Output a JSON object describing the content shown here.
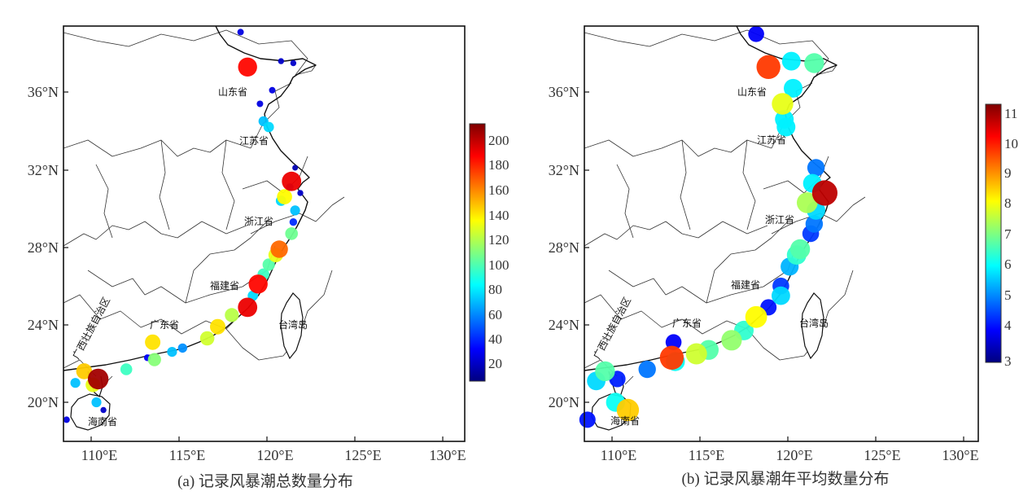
{
  "panels": [
    {
      "id": "a",
      "caption": "(a) 记录风暴潮总数量分布",
      "x_ticks": [
        "110°E",
        "115°E",
        "120°E",
        "125°E",
        "130°E"
      ],
      "y_ticks": [
        "36°N",
        "32°N",
        "28°N",
        "24°N",
        "20°N"
      ],
      "colorbar_ticks": [
        "200",
        "180",
        "160",
        "140",
        "120",
        "100",
        "80",
        "60",
        "40",
        "20"
      ],
      "colorbar_range": [
        5,
        212
      ],
      "provinces": [
        "山东省",
        "江苏省",
        "浙江省",
        "福建省",
        "广东省",
        "台湾岛",
        "海南省",
        "广西壮族自治区"
      ],
      "stations": [
        {
          "lon": 118.5,
          "lat": 39.1,
          "v": 25
        },
        {
          "lon": 118.9,
          "lat": 37.3,
          "v": 185
        },
        {
          "lon": 120.8,
          "lat": 37.6,
          "v": 20
        },
        {
          "lon": 121.5,
          "lat": 37.5,
          "v": 20
        },
        {
          "lon": 120.3,
          "lat": 36.1,
          "v": 25
        },
        {
          "lon": 119.6,
          "lat": 35.4,
          "v": 25
        },
        {
          "lon": 119.8,
          "lat": 34.5,
          "v": 70
        },
        {
          "lon": 120.1,
          "lat": 34.2,
          "v": 75
        },
        {
          "lon": 121.6,
          "lat": 32.1,
          "v": 15
        },
        {
          "lon": 121.4,
          "lat": 31.4,
          "v": 190
        },
        {
          "lon": 121.3,
          "lat": 31.1,
          "v": 40
        },
        {
          "lon": 121.9,
          "lat": 30.8,
          "v": 20
        },
        {
          "lon": 120.8,
          "lat": 30.4,
          "v": 75
        },
        {
          "lon": 121.0,
          "lat": 30.6,
          "v": 135
        },
        {
          "lon": 121.6,
          "lat": 29.9,
          "v": 70
        },
        {
          "lon": 121.5,
          "lat": 29.3,
          "v": 40
        },
        {
          "lon": 121.4,
          "lat": 28.7,
          "v": 105
        },
        {
          "lon": 120.7,
          "lat": 27.9,
          "v": 165
        },
        {
          "lon": 120.5,
          "lat": 27.6,
          "v": 130
        },
        {
          "lon": 120.1,
          "lat": 27.1,
          "v": 100
        },
        {
          "lon": 119.8,
          "lat": 26.6,
          "v": 95
        },
        {
          "lon": 119.5,
          "lat": 26.1,
          "v": 185
        },
        {
          "lon": 119.2,
          "lat": 25.5,
          "v": 75
        },
        {
          "lon": 118.9,
          "lat": 24.9,
          "v": 190
        },
        {
          "lon": 118.0,
          "lat": 24.5,
          "v": 120
        },
        {
          "lon": 117.2,
          "lat": 23.9,
          "v": 140
        },
        {
          "lon": 116.6,
          "lat": 23.3,
          "v": 125
        },
        {
          "lon": 115.2,
          "lat": 22.8,
          "v": 60
        },
        {
          "lon": 114.6,
          "lat": 22.6,
          "v": 70
        },
        {
          "lon": 113.5,
          "lat": 23.1,
          "v": 140
        },
        {
          "lon": 113.6,
          "lat": 22.2,
          "v": 110
        },
        {
          "lon": 113.2,
          "lat": 22.3,
          "v": 30
        },
        {
          "lon": 112.0,
          "lat": 21.7,
          "v": 95
        },
        {
          "lon": 110.4,
          "lat": 21.2,
          "v": 205
        },
        {
          "lon": 110.1,
          "lat": 20.9,
          "v": 130
        },
        {
          "lon": 109.6,
          "lat": 21.6,
          "v": 145
        },
        {
          "lon": 109.1,
          "lat": 21.0,
          "v": 70
        },
        {
          "lon": 110.3,
          "lat": 20.0,
          "v": 70
        },
        {
          "lon": 110.7,
          "lat": 19.6,
          "v": 20
        },
        {
          "lon": 108.6,
          "lat": 19.1,
          "v": 25
        }
      ]
    },
    {
      "id": "b",
      "caption": "(b) 记录风暴潮年平均数量分布",
      "x_ticks": [
        "110°E",
        "115°E",
        "120°E",
        "125°E",
        "130°E"
      ],
      "y_ticks": [
        "36°N",
        "32°N",
        "28°N",
        "24°N",
        "20°N"
      ],
      "colorbar_ticks": [
        "11",
        "10",
        "9",
        "8",
        "7",
        "6",
        "5",
        "4",
        "3"
      ],
      "colorbar_range": [
        3,
        11.3
      ],
      "provinces": [
        "山东省",
        "江苏省",
        "浙江省",
        "福建省",
        "广东省",
        "台湾岛",
        "海南省",
        "广西壮族自治区"
      ],
      "stations": [
        {
          "lon": 118.2,
          "lat": 39.0,
          "v": 4.0
        },
        {
          "lon": 118.9,
          "lat": 37.3,
          "v": 9.8
        },
        {
          "lon": 120.2,
          "lat": 37.6,
          "v": 6.0
        },
        {
          "lon": 121.5,
          "lat": 37.5,
          "v": 6.8
        },
        {
          "lon": 120.3,
          "lat": 36.2,
          "v": 6.0
        },
        {
          "lon": 119.7,
          "lat": 35.4,
          "v": 8.0
        },
        {
          "lon": 119.8,
          "lat": 34.6,
          "v": 6.0
        },
        {
          "lon": 119.9,
          "lat": 34.2,
          "v": 6.0
        },
        {
          "lon": 121.6,
          "lat": 32.1,
          "v": 5.0
        },
        {
          "lon": 121.4,
          "lat": 31.3,
          "v": 6.0
        },
        {
          "lon": 122.1,
          "lat": 30.8,
          "v": 10.8
        },
        {
          "lon": 121.1,
          "lat": 30.3,
          "v": 7.5
        },
        {
          "lon": 121.6,
          "lat": 29.9,
          "v": 5.8
        },
        {
          "lon": 121.5,
          "lat": 29.2,
          "v": 5.0
        },
        {
          "lon": 121.3,
          "lat": 28.7,
          "v": 4.5
        },
        {
          "lon": 120.7,
          "lat": 27.9,
          "v": 6.8
        },
        {
          "lon": 120.5,
          "lat": 27.6,
          "v": 6.5
        },
        {
          "lon": 120.1,
          "lat": 27.0,
          "v": 5.5
        },
        {
          "lon": 119.6,
          "lat": 26.0,
          "v": 4.5
        },
        {
          "lon": 119.6,
          "lat": 25.5,
          "v": 5.8
        },
        {
          "lon": 118.9,
          "lat": 24.9,
          "v": 4.2
        },
        {
          "lon": 118.2,
          "lat": 24.4,
          "v": 8.2
        },
        {
          "lon": 117.5,
          "lat": 23.7,
          "v": 6.5
        },
        {
          "lon": 116.8,
          "lat": 23.2,
          "v": 7.3
        },
        {
          "lon": 115.5,
          "lat": 22.7,
          "v": 6.8
        },
        {
          "lon": 114.8,
          "lat": 22.5,
          "v": 7.8
        },
        {
          "lon": 113.4,
          "lat": 22.3,
          "v": 9.8
        },
        {
          "lon": 113.5,
          "lat": 23.1,
          "v": 4.0
        },
        {
          "lon": 113.6,
          "lat": 22.1,
          "v": 6.2
        },
        {
          "lon": 112.0,
          "lat": 21.7,
          "v": 5.0
        },
        {
          "lon": 110.3,
          "lat": 21.2,
          "v": 4.3
        },
        {
          "lon": 109.6,
          "lat": 21.6,
          "v": 6.8
        },
        {
          "lon": 109.1,
          "lat": 21.1,
          "v": 5.8
        },
        {
          "lon": 110.2,
          "lat": 20.0,
          "v": 6.2
        },
        {
          "lon": 110.9,
          "lat": 19.6,
          "v": 8.6
        },
        {
          "lon": 108.6,
          "lat": 19.1,
          "v": 4.2
        }
      ]
    }
  ]
}
